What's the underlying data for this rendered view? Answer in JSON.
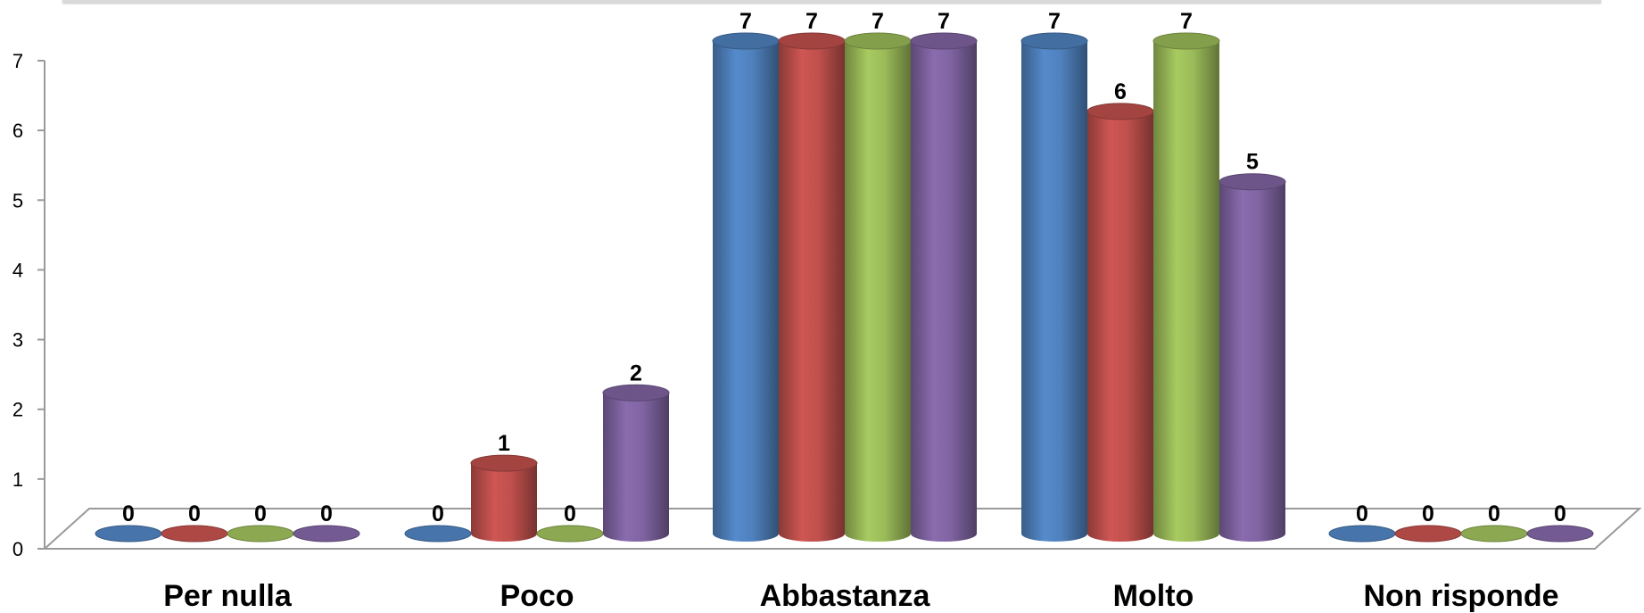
{
  "chart_data": {
    "type": "bar",
    "style": "3d-cylinder",
    "categories": [
      "Per nulla",
      "Poco",
      "Abbastanza",
      "Molto",
      "Non risponde"
    ],
    "series": [
      {
        "values": [
          0,
          0,
          7,
          7,
          0
        ],
        "color": "#4F81BD"
      },
      {
        "values": [
          0,
          1,
          7,
          6,
          0
        ],
        "color": "#C0504D"
      },
      {
        "values": [
          0,
          0,
          7,
          7,
          0
        ],
        "color": "#9BBB59"
      },
      {
        "values": [
          0,
          2,
          7,
          5,
          0
        ],
        "color": "#8064A2"
      }
    ],
    "y_ticks": [
      "0",
      "1",
      "2",
      "3",
      "4",
      "5",
      "6",
      "7"
    ],
    "ylim": [
      0,
      7
    ],
    "grid": false,
    "legend": "none",
    "data_labels": true
  }
}
